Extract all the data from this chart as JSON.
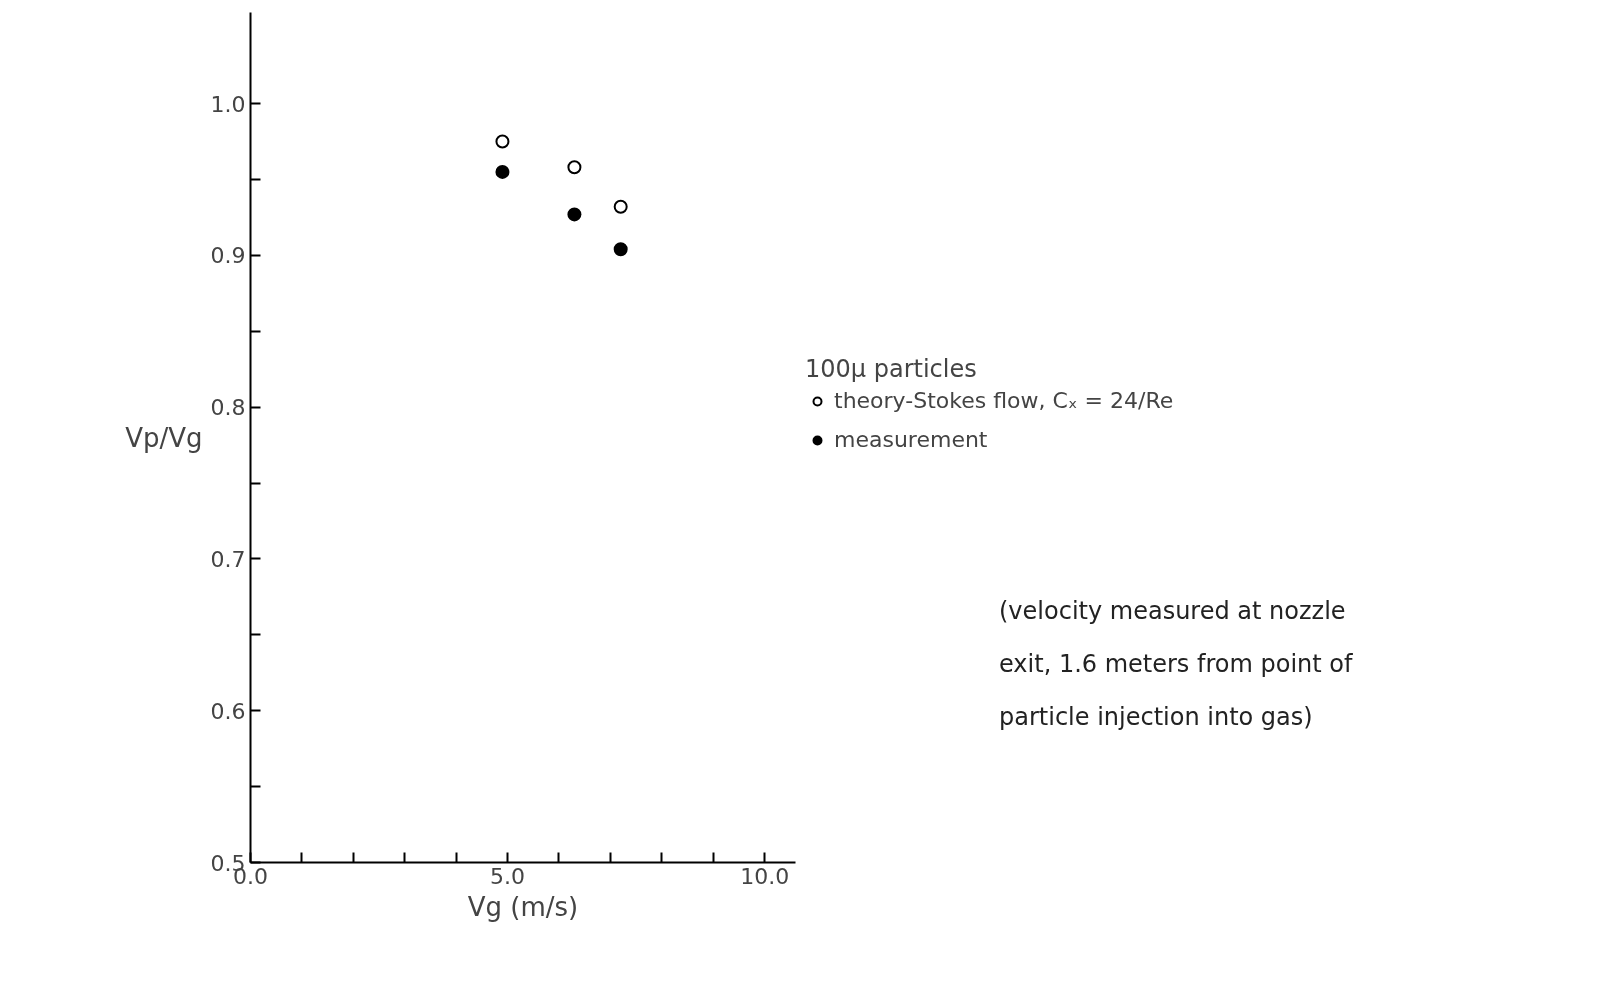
{
  "chart_data": {
    "type": "scatter",
    "xlabel": "Vg (m/s)",
    "ylabel": "Vp/Vg",
    "legend_title": "100µ particles",
    "series": [
      {
        "name": "theory-Stokes flow, Cₓ = 24/Re",
        "color": "#000000",
        "marker": "circle_open",
        "x": [
          4.9,
          6.3,
          7.2
        ],
        "values": [
          0.975,
          0.958,
          0.932
        ]
      },
      {
        "name": "measurement",
        "color": "#000000",
        "x": [
          4.9,
          6.3,
          7.2
        ],
        "values": [
          0.955,
          0.927,
          0.904
        ]
      }
    ],
    "xlim": [
      0,
      10.6
    ],
    "ylim": [
      0.5,
      1.06
    ],
    "xticks": [
      {
        "value": 0,
        "label": "0.0"
      },
      {
        "value": 1,
        "label": null
      },
      {
        "value": 2,
        "label": null
      },
      {
        "value": 3,
        "label": null
      },
      {
        "value": 4,
        "label": null
      },
      {
        "value": 5,
        "label": "5.0"
      },
      {
        "value": 6,
        "label": null
      },
      {
        "value": 7,
        "label": null
      },
      {
        "value": 8,
        "label": null
      },
      {
        "value": 9,
        "label": null
      },
      {
        "value": 10,
        "label": "10.0"
      }
    ],
    "yticks": [
      0.5,
      {
        "value": 0.55,
        "label": null
      },
      0.6,
      {
        "value": 0.65,
        "label": null
      },
      0.7,
      {
        "value": 0.75,
        "label": null
      },
      0.8,
      {
        "value": 0.85,
        "label": null
      },
      0.9,
      {
        "value": 0.95,
        "label": null
      },
      {
        "value": 1.0,
        "label": "1.0"
      }
    ],
    "annotations": [
      "(velocity measured at nozzle\nexit, 1.6 meters from point of\nparticle injection into gas)"
    ],
    "marker": "circle",
    "grid": false,
    "legend": "right"
  }
}
